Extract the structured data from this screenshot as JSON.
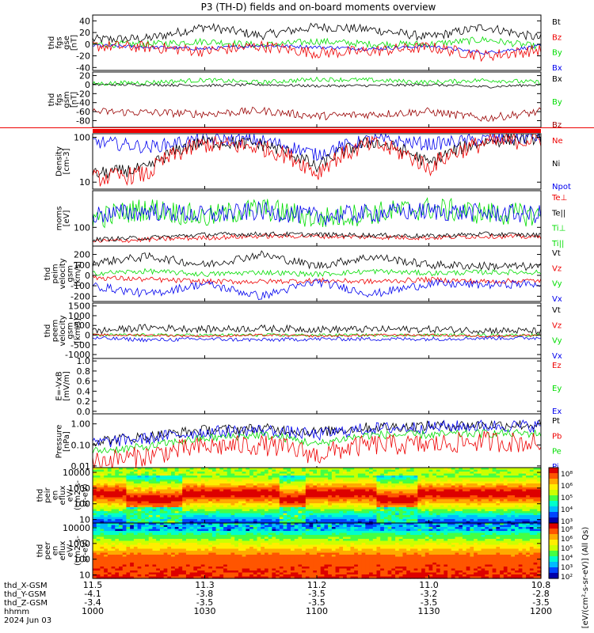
{
  "title": "P3 (TH-D) fields and on-board moments overview",
  "colors": {
    "black": "#000000",
    "red": "#ee0000",
    "green": "#00dd00",
    "blue": "#0000ee",
    "darkred": "#990000"
  },
  "chart_data": {
    "type": "line",
    "x_axis": {
      "rows": [
        {
          "label": "thd_X-GSM",
          "values": [
            "11.5",
            "11.3",
            "11.2",
            "11.0",
            "10.8"
          ]
        },
        {
          "label": "thd_Y-GSM",
          "values": [
            "-4.1",
            "-3.8",
            "-3.5",
            "-3.2",
            "-2.8"
          ]
        },
        {
          "label": "thd_Z-GSM",
          "values": [
            "-3.4",
            "-3.5",
            "-3.5",
            "-3.5",
            "-3.5"
          ]
        },
        {
          "label": "hhmm",
          "values": [
            "1000",
            "1030",
            "1100",
            "1130",
            "1200"
          ]
        }
      ],
      "date": "2024 Jun 03",
      "range": [
        "10:00",
        "12:00"
      ]
    },
    "panels": [
      {
        "id": "fgs-gse",
        "ylabel": [
          "thd",
          "fgs",
          "gse",
          "[nT]"
        ],
        "yticks": [
          "40",
          "20",
          "0",
          "-20",
          "-40"
        ],
        "yticklevels": [
          40,
          20,
          0,
          -20,
          -40
        ],
        "ylim": [
          -45,
          50
        ],
        "scale": "linear",
        "legend": [
          {
            "text": "Bt",
            "color": "black"
          },
          {
            "text": "Bz",
            "color": "red"
          },
          {
            "text": "By",
            "color": "green"
          },
          {
            "text": "Bx",
            "color": "blue"
          }
        ],
        "series": [
          {
            "name": "Bt",
            "color": "black",
            "base": [
              8,
              10,
              30,
              15,
              30,
              25,
              12,
              30,
              10
            ],
            "noise": 8
          },
          {
            "name": "By",
            "color": "green",
            "base": [
              0,
              0,
              5,
              -2,
              5,
              0,
              0,
              8,
              -5
            ],
            "noise": 6
          },
          {
            "name": "Bx",
            "color": "blue",
            "base": [
              -2,
              -5,
              -8,
              -2,
              -5,
              -8,
              -3,
              -15,
              -3
            ],
            "noise": 3
          },
          {
            "name": "Bz",
            "color": "red",
            "base": [
              -3,
              -5,
              -12,
              -3,
              -15,
              -12,
              -5,
              -20,
              -10
            ],
            "noise": 10
          }
        ]
      },
      {
        "id": "fgs-gsm",
        "ylabel": [
          "thd",
          "fgs",
          "gsm",
          "[nT]"
        ],
        "yticks": [
          "20",
          "0",
          "-20",
          "-40",
          "-60",
          "-80"
        ],
        "yticklevels": [
          20,
          0,
          -20,
          -40,
          -60,
          -80
        ],
        "ylim": [
          -95,
          28
        ],
        "scale": "linear",
        "legend": [
          {
            "text": "Bx",
            "color": "black"
          },
          {
            "text": "By",
            "color": "green"
          },
          {
            "text": "Bz",
            "color": "darkred"
          }
        ],
        "series": [
          {
            "name": "Bx",
            "color": "black",
            "base": [
              0,
              0,
              -2,
              0,
              -3,
              -2,
              0,
              -5,
              0
            ],
            "noise": 3
          },
          {
            "name": "By",
            "color": "green",
            "base": [
              2,
              5,
              10,
              5,
              12,
              10,
              5,
              10,
              5
            ],
            "noise": 5
          },
          {
            "name": "Bz",
            "color": "darkred",
            "base": [
              -60,
              -62,
              -65,
              -58,
              -70,
              -66,
              -60,
              -75,
              -60
            ],
            "noise": 9
          }
        ]
      },
      {
        "id": "density",
        "ylabel": [
          "Density",
          "[cm-3]"
        ],
        "yticks": [
          "100",
          "10"
        ],
        "yticklevels": [
          100,
          10
        ],
        "ylim": [
          7,
          120
        ],
        "scale": "log",
        "legend": [
          {
            "text": "Ne",
            "color": "red"
          },
          {
            "text": "Ni",
            "color": "black"
          },
          {
            "text": "Npot",
            "color": "blue"
          }
        ],
        "series": [
          {
            "name": "Npot",
            "color": "blue",
            "base": [
              80,
              60,
              90,
              85,
              40,
              90,
              70,
              90,
              100
            ],
            "noise": 0.15
          },
          {
            "name": "Ni",
            "color": "black",
            "base": [
              15,
              20,
              80,
              70,
              20,
              80,
              25,
              80,
              100
            ],
            "noise": 0.15
          },
          {
            "name": "Ne",
            "color": "red",
            "base": [
              12,
              15,
              70,
              60,
              15,
              70,
              20,
              75,
              90
            ],
            "noise": 0.2
          }
        ]
      },
      {
        "id": "moms-t",
        "ylabel": [
          "moms",
          "[eV]"
        ],
        "yticks": [
          "100"
        ],
        "yticklevels": [
          100
        ],
        "ylim": [
          40,
          600
        ],
        "scale": "log",
        "legend": [
          {
            "text": "Te⊥",
            "color": "red"
          },
          {
            "text": "Te||",
            "color": "black"
          },
          {
            "text": "Ti⊥",
            "color": "green"
          },
          {
            "text": "Ti||",
            "color": "green"
          }
        ],
        "series": [
          {
            "name": "Ti",
            "color": "green",
            "base": [
              150,
              250,
              160,
              250,
              150,
              200,
              250,
              200,
              180
            ],
            "noise": 0.25
          },
          {
            "name": "Ti2",
            "color": "blue",
            "base": [
              180,
              220,
              180,
              220,
              170,
              200,
              220,
              200,
              190
            ],
            "noise": 0.2
          },
          {
            "name": "Te",
            "color": "red",
            "base": [
              50,
              55,
              60,
              65,
              65,
              62,
              60,
              65,
              62
            ],
            "noise": 0.05
          },
          {
            "name": "Te2",
            "color": "black",
            "base": [
              55,
              60,
              70,
              72,
              70,
              68,
              65,
              72,
              68
            ],
            "noise": 0.05
          }
        ]
      },
      {
        "id": "vel-esa",
        "ylabel": [
          "thd",
          "peim",
          "velocity",
          "gsm",
          "[km/s]"
        ],
        "yticks": [
          "200",
          "100",
          "0",
          "-100",
          "-200"
        ],
        "yticklevels": [
          200,
          100,
          0,
          -100,
          -200
        ],
        "ylim": [
          -250,
          280
        ],
        "scale": "linear",
        "legend": [
          {
            "text": "Vt",
            "color": "black"
          },
          {
            "text": "Vz",
            "color": "red"
          },
          {
            "text": "Vy",
            "color": "green"
          },
          {
            "text": "Vx",
            "color": "blue"
          }
        ],
        "series": [
          {
            "name": "Vt",
            "color": "black",
            "base": [
              120,
              180,
              100,
              200,
              90,
              180,
              100,
              90,
              80
            ],
            "noise": 40
          },
          {
            "name": "Vy",
            "color": "green",
            "base": [
              20,
              40,
              10,
              30,
              10,
              40,
              20,
              30,
              30
            ],
            "noise": 25
          },
          {
            "name": "Vz",
            "color": "red",
            "base": [
              -20,
              -40,
              -60,
              -60,
              -50,
              -60,
              -40,
              -60,
              -50
            ],
            "noise": 25
          },
          {
            "name": "Vx",
            "color": "blue",
            "base": [
              -100,
              -180,
              -80,
              -200,
              -60,
              -180,
              -80,
              -90,
              -80
            ],
            "noise": 40
          }
        ]
      },
      {
        "id": "vel-peer",
        "ylabel": [
          "thd",
          "peem",
          "velocity",
          "gsm",
          "[km/s]"
        ],
        "yticks": [
          "1500",
          "1000",
          "500",
          "0",
          "-500",
          "-1000"
        ],
        "yticklevels": [
          1500,
          1000,
          500,
          0,
          -500,
          -1000
        ],
        "ylim": [
          -1200,
          1650
        ],
        "scale": "linear",
        "legend": [
          {
            "text": "Vt",
            "color": "black"
          },
          {
            "text": "Vz",
            "color": "red"
          },
          {
            "text": "Vy",
            "color": "green"
          },
          {
            "text": "Vx",
            "color": "blue"
          }
        ],
        "series": [
          {
            "name": "Vt",
            "color": "black",
            "base": [
              200,
              400,
              300,
              350,
              300,
              300,
              300,
              250,
              200
            ],
            "noise": 180
          },
          {
            "name": "Vy",
            "color": "green",
            "base": [
              0,
              0,
              0,
              0,
              0,
              0,
              0,
              0,
              0
            ],
            "noise": 80
          },
          {
            "name": "Vz",
            "color": "red",
            "base": [
              0,
              0,
              -50,
              0,
              -50,
              0,
              0,
              -50,
              0
            ],
            "noise": 60
          },
          {
            "name": "Vx",
            "color": "blue",
            "base": [
              -150,
              -250,
              -200,
              -250,
              -200,
              -200,
              -200,
              -150,
              -150
            ],
            "noise": 100
          }
        ]
      },
      {
        "id": "efield",
        "ylabel": [
          "E=-VxB",
          "[mV/m]"
        ],
        "yticks": [
          "1.0",
          "0.8",
          "0.6",
          "0.4",
          "0.2",
          "0.0"
        ],
        "yticklevels": [
          1.0,
          0.8,
          0.6,
          0.4,
          0.2,
          0.0
        ],
        "ylim": [
          -0.05,
          1.05
        ],
        "scale": "linear",
        "legend": [
          {
            "text": "Ez",
            "color": "red"
          },
          {
            "text": "Ey",
            "color": "green"
          },
          {
            "text": "Ex",
            "color": "blue"
          }
        ],
        "series": []
      },
      {
        "id": "pressure",
        "ylabel": [
          "Pressure",
          "[nPa]"
        ],
        "yticks": [
          "1.00",
          "0.10",
          "0.01"
        ],
        "yticklevels": [
          1.0,
          0.1,
          0.01
        ],
        "ylim": [
          0.007,
          3.0
        ],
        "scale": "log",
        "legend": [
          {
            "text": "Pt",
            "color": "black"
          },
          {
            "text": "Pb",
            "color": "red"
          },
          {
            "text": "Pe",
            "color": "green"
          },
          {
            "text": "Pi",
            "color": "blue"
          }
        ],
        "series": [
          {
            "name": "Pt",
            "color": "black",
            "base": [
              0.15,
              0.25,
              0.5,
              0.6,
              0.4,
              0.7,
              0.8,
              0.9,
              0.9
            ],
            "noise": 0.25
          },
          {
            "name": "Pi",
            "color": "blue",
            "base": [
              0.12,
              0.2,
              0.4,
              0.5,
              0.3,
              0.6,
              0.7,
              0.8,
              0.8
            ],
            "noise": 0.3
          },
          {
            "name": "Pe",
            "color": "green",
            "base": [
              0.05,
              0.08,
              0.2,
              0.3,
              0.1,
              0.3,
              0.3,
              0.35,
              0.35
            ],
            "noise": 0.2
          },
          {
            "name": "Pb",
            "color": "red",
            "base": [
              0.015,
              0.03,
              0.08,
              0.1,
              0.03,
              0.1,
              0.1,
              0.15,
              0.12
            ],
            "noise": 0.5
          }
        ]
      },
      {
        "id": "peir-spec",
        "type": "heatmap",
        "ylabel": [
          "thd",
          "peir",
          "en",
          "eflux",
          "eV/",
          "(cm2-s-",
          "sr-eV)"
        ],
        "yticks": [
          "10000",
          "1000",
          "100",
          "10"
        ],
        "yticklevels": [
          10000,
          1000,
          100,
          10
        ],
        "ylim": [
          6,
          20000
        ],
        "scale": "log"
      },
      {
        "id": "peer-spec",
        "type": "heatmap",
        "ylabel": [
          "thd",
          "peer",
          "en",
          "eflux",
          "eV/",
          "(cm2-s-",
          "sr-eV)"
        ],
        "yticks": [
          "10000",
          "1000",
          "100",
          "10"
        ],
        "yticklevels": [
          10000,
          1000,
          100,
          10
        ],
        "ylim": [
          6,
          20000
        ],
        "scale": "log"
      }
    ],
    "colorbars": [
      {
        "ticks": [
          "10⁸",
          "10⁶",
          "10⁵",
          "10⁴",
          "10³"
        ]
      },
      {
        "ticks": [
          "10⁸",
          "10⁶",
          "10⁵",
          "10⁴",
          "10³",
          "10²"
        ]
      }
    ],
    "colorbar_label": "[eV/(cm²-s-sr-eV)] (All Qs)"
  }
}
